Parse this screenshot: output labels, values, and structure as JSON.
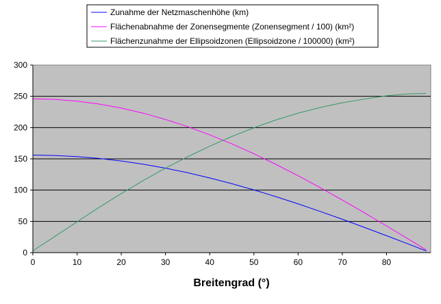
{
  "chart_data": {
    "type": "line",
    "title": "",
    "xlabel": "Breitengrad (°)",
    "ylabel": "",
    "xlim": [
      0,
      90
    ],
    "ylim": [
      0,
      300
    ],
    "x_ticks": [
      0,
      10,
      20,
      30,
      40,
      50,
      60,
      70,
      80
    ],
    "y_ticks": [
      0,
      50,
      100,
      150,
      200,
      250,
      300
    ],
    "grid": "horizontal",
    "plot_background": "#c0c0c0",
    "legend_position": "top-center",
    "series": [
      {
        "name": "Zunahme der Netzmaschenhöhe (km)",
        "color": "#0000ff",
        "x": [
          0,
          5,
          10,
          15,
          20,
          25,
          30,
          35,
          40,
          45,
          50,
          55,
          60,
          65,
          70,
          75,
          80,
          85,
          89
        ],
        "y": [
          156,
          155.4,
          153.6,
          150.7,
          146.6,
          141.4,
          135.1,
          127.8,
          119.5,
          110.3,
          100.3,
          89.5,
          78,
          65.9,
          53.4,
          40.4,
          27.1,
          13.6,
          2.7
        ]
      },
      {
        "name": "Flächenabnahme der Zonensegmente (Zonensegment / 100) (km²)",
        "color": "#ff00ff",
        "x": [
          0,
          5,
          10,
          15,
          20,
          25,
          30,
          35,
          40,
          45,
          50,
          55,
          60,
          65,
          70,
          75,
          80,
          85,
          89
        ],
        "y": [
          246,
          245.1,
          242.3,
          237.6,
          231.2,
          223,
          213,
          201.5,
          188.4,
          174,
          158.1,
          141.1,
          123,
          104,
          84.1,
          63.7,
          42.7,
          21.4,
          4.3
        ]
      },
      {
        "name": "Flächenzunahme der Ellipsoidzonen (Ellipsoidzone / 100000) (km²)",
        "color": "#339966",
        "x": [
          0,
          5,
          10,
          15,
          20,
          25,
          30,
          35,
          40,
          45,
          50,
          55,
          60,
          65,
          70,
          75,
          80,
          85,
          89
        ],
        "y": [
          3,
          26.1,
          49.3,
          72.5,
          94.5,
          115.5,
          135.1,
          153.3,
          170.2,
          185.7,
          199.7,
          212.3,
          223.1,
          232.1,
          239.6,
          245.6,
          250.9,
          253.9,
          254.5
        ]
      }
    ]
  }
}
